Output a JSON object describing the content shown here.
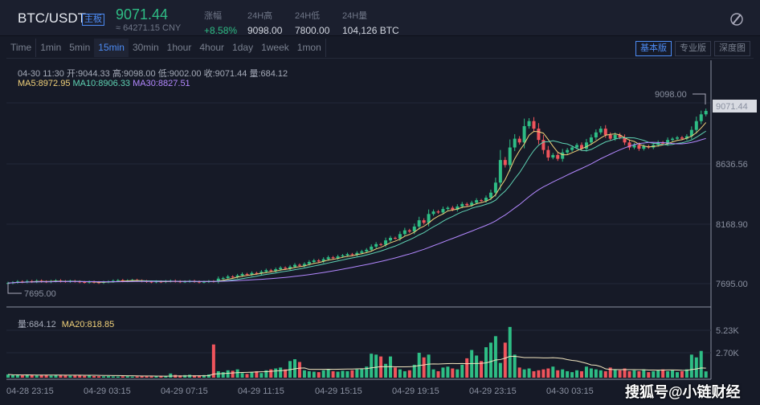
{
  "header": {
    "pair": "BTC/USDT",
    "badge": "主板",
    "price": "9071.44",
    "cny": "≈ 64271.15 CNY",
    "stats": [
      {
        "label": "涨幅",
        "value": "+8.58%"
      },
      {
        "label": "24H高",
        "value": "9098.00"
      },
      {
        "label": "24H低",
        "value": "7800.00"
      },
      {
        "label": "24H量",
        "value": "104,126 BTC"
      }
    ]
  },
  "tabs": [
    "Time",
    "1min",
    "5min",
    "15min",
    "30min",
    "1hour",
    "4hour",
    "1day",
    "1week",
    "1mon"
  ],
  "active_tab": "15min",
  "views": [
    "基本版",
    "专业版",
    "深度图"
  ],
  "info": {
    "line": "04-30 11:30  开:9044.33  高:9098.00  低:9002.00  收:9071.44  量:684.12",
    "ma5": "MA5:8972.95",
    "ma10": "MA10:8906.33",
    "ma30": "MA30:8827.51"
  },
  "volume_info": {
    "vol": "量:684.12",
    "ma20": "MA20:818.85"
  },
  "watermark": "搜狐号@小链财经",
  "colors": {
    "up": "#2ebd85",
    "down": "#f0545c",
    "ma5": "#f2d27a",
    "ma10": "#5fd3b4",
    "ma30": "#b388ff",
    "accent": "#4d8cf5"
  },
  "chart_data": {
    "type": "candlestick",
    "interval": "15min",
    "price_ticks": [
      "9071.44",
      "8636.56",
      "8168.90",
      "7695.00"
    ],
    "high_label": "9098.00",
    "low_label": "7695.00",
    "current": "9071.44",
    "volume_ticks": [
      "5.23K",
      "2.70K"
    ],
    "x_labels": [
      "04-28 23:15",
      "04-29 03:15",
      "04-29 07:15",
      "04-29 11:15",
      "04-29 15:15",
      "04-29 19:15",
      "04-29 23:15",
      "04-30 03:15"
    ],
    "closes": [
      7700,
      7705,
      7712,
      7708,
      7715,
      7710,
      7718,
      7712,
      7709,
      7715,
      7720,
      7714,
      7711,
      7716,
      7712,
      7708,
      7705,
      7710,
      7706,
      7702,
      7708,
      7712,
      7718,
      7722,
      7716,
      7720,
      7724,
      7719,
      7715,
      7711,
      7708,
      7712,
      7709,
      7714,
      7718,
      7713,
      7709,
      7712,
      7716,
      7711,
      7707,
      7710,
      7714,
      7712,
      7735,
      7740,
      7752,
      7748,
      7760,
      7772,
      7768,
      7780,
      7776,
      7790,
      7802,
      7795,
      7810,
      7822,
      7815,
      7830,
      7845,
      7838,
      7852,
      7868,
      7880,
      7872,
      7890,
      7905,
      7898,
      7912,
      7920,
      7930,
      7925,
      7940,
      7952,
      7965,
      7990,
      8010,
      8005,
      8040,
      8060,
      8055,
      8090,
      8120,
      8110,
      8150,
      8200,
      8180,
      8250,
      8270,
      8262,
      8290,
      8300,
      8285,
      8310,
      8330,
      8320,
      8340,
      8360,
      8355,
      8380,
      8420,
      8500,
      8680,
      8640,
      8780,
      8850,
      8820,
      8950,
      8990,
      8930,
      8840,
      8760,
      8700,
      8720,
      8690,
      8740,
      8760,
      8780,
      8800,
      8770,
      8820,
      8860,
      8900,
      8930,
      8880,
      8850,
      8880,
      8860,
      8820,
      8780,
      8800,
      8770,
      8790,
      8780,
      8800,
      8820,
      8810,
      8840,
      8850,
      8860,
      8850,
      8870,
      8920,
      8990,
      9044,
      9071
    ],
    "volumes": [
      350,
      280,
      300,
      250,
      320,
      260,
      240,
      300,
      280,
      220,
      260,
      300,
      240,
      210,
      230,
      260,
      200,
      220,
      180,
      160,
      150,
      170,
      140,
      130,
      150,
      160,
      120,
      140,
      160,
      150,
      130,
      150,
      170,
      200,
      450,
      300,
      250,
      280,
      320,
      260,
      240,
      280,
      350,
      3600,
      700,
      600,
      800,
      750,
      900,
      500,
      400,
      600,
      700,
      500,
      800,
      900,
      1000,
      1100,
      900,
      1800,
      2000,
      1700,
      800,
      700,
      650,
      600,
      800,
      900,
      700,
      650,
      750,
      700,
      800,
      900,
      1000,
      1200,
      2600,
      2500,
      2300,
      1500,
      2300,
      1100,
      900,
      700,
      800,
      1400,
      2700,
      2200,
      2500,
      900,
      700,
      1100,
      1200,
      1000,
      900,
      1400,
      2100,
      3000,
      2400,
      1800,
      3300,
      3800,
      4500,
      1600,
      3800,
      5500,
      2500,
      1100,
      900,
      1000,
      700,
      800,
      900,
      1000,
      1200,
      800,
      900,
      700,
      600,
      800,
      700,
      1200,
      1000,
      900,
      800,
      700,
      1100,
      900,
      800,
      1000,
      700,
      800,
      700,
      900,
      600,
      700,
      800,
      900,
      700,
      800,
      600,
      700,
      900,
      2500,
      2200,
      2900,
      684
    ]
  }
}
